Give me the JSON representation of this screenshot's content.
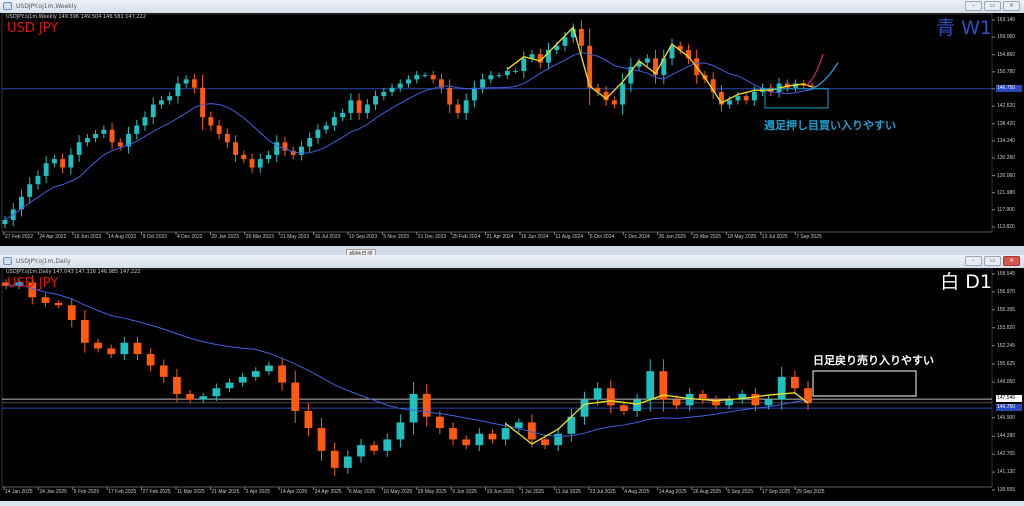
{
  "weekly": {
    "window_title": "USDJPY.oj1m,Weekly",
    "info_line": "USDJPY.oj1m,Weekly  149.396 149.504 146.581 147.222",
    "symbol_label": "USD JPY",
    "timeframe_label": "青 W1",
    "annotation": "週足押し目買い入りやすい",
    "current_price": "146.750"
  },
  "daily": {
    "window_title": "USDJPY.oj1m,Daily",
    "info_line": "USDJPY.oj1m,Daily  147.043 147.316 146.985 147.222",
    "symbol_label": "USD JPY",
    "timeframe_label": "白 D1",
    "annotation": "日足戻り売り入りやすい",
    "current_price": "146.750",
    "line_price": "147.546"
  },
  "tooltip": "横軸目盛",
  "colors": {
    "bull": "#20c0c0",
    "bear": "#ff5a10",
    "ma": "#4060e0",
    "zigzag": "#f0e020",
    "weekly_hline": "#2848b0",
    "weekly_box": "#1aa0d0",
    "daily_box": "#ffffff",
    "symbol": "#e01010",
    "w1_label": "#3050c0",
    "d1_label": "#ffffff",
    "projection_up": "#d0206a",
    "projection_ma": "#20a0e0"
  },
  "window_buttons": [
    "minimize",
    "restore",
    "close"
  ],
  "chart_data": [
    {
      "type": "candlestick",
      "title": "USDJPY.oj1m,Weekly",
      "ylim": [
        113.82,
        163.14
      ],
      "yticks": [
        "163.140",
        "159.060",
        "154.860",
        "150.780",
        "146.750",
        "142.620",
        "138.420",
        "134.340",
        "130.260",
        "126.060",
        "121.980",
        "117.900",
        "113.820"
      ],
      "xticks": [
        "27 Feb 2022",
        "24 Apr 2022",
        "19 Jun 2022",
        "14 Aug 2022",
        "9 Oct 2022",
        "4 Dec 2022",
        "29 Jan 2023",
        "26 Mar 2023",
        "21 May 2023",
        "16 Jul 2023",
        "10 Sep 2023",
        "5 Nov 2023",
        "31 Dec 2023",
        "25 Feb 2024",
        "21 Apr 2024",
        "16 Jun 2024",
        "11 Aug 2024",
        "6 Oct 2024",
        "1 Dec 2024",
        "26 Jan 2025",
        "23 Mar 2025",
        "18 May 2025",
        "13 Jul 2025",
        "7 Sep 2025"
      ],
      "closes": [
        115.5,
        118,
        121,
        124,
        126,
        129,
        130,
        128,
        131,
        134,
        135,
        136,
        137,
        134,
        133,
        136,
        138,
        140,
        143,
        144,
        145,
        148,
        149,
        147,
        140,
        138,
        136,
        134,
        131,
        130,
        128,
        130,
        131,
        134,
        132,
        131,
        133,
        135,
        137,
        138,
        140,
        141,
        144,
        141,
        143,
        145,
        146,
        147,
        148,
        149,
        150,
        150,
        149,
        147,
        143,
        141,
        144,
        147,
        149,
        150,
        150,
        151,
        151,
        154,
        155,
        153,
        156,
        157,
        159,
        161,
        157,
        147,
        146,
        144,
        143,
        148,
        152,
        153,
        154,
        150,
        154,
        157,
        156,
        154,
        150,
        149,
        146,
        143,
        144,
        145,
        144,
        146,
        147,
        146,
        148,
        147,
        148,
        147.5,
        147.2
      ],
      "horizontal_line": 146.75
    },
    {
      "type": "candlestick",
      "title": "USDJPY.oj1m,Daily",
      "ylim": [
        139.555,
        158.545
      ],
      "yticks": [
        "158.545",
        "156.970",
        "155.395",
        "153.820",
        "152.245",
        "150.625",
        "149.050",
        "145.900",
        "144.280",
        "142.705",
        "141.130",
        "139.555"
      ],
      "xticks": [
        "14 Jan 2025",
        "24 Jan 2025",
        "5 Feb 2025",
        "17 Feb 2025",
        "27 Feb 2025",
        "11 Mar 2025",
        "21 Mar 2025",
        "2 Apr 2025",
        "14 Apr 2025",
        "24 Apr 2025",
        "6 May 2025",
        "16 May 2025",
        "28 May 2025",
        "9 Jun 2025",
        "19 Jun 2025",
        "1 Jul 2025",
        "11 Jul 2025",
        "23 Jul 2025",
        "4 Aug 2025",
        "14 Aug 2025",
        "26 Aug 2025",
        "5 Sep 2025",
        "17 Sep 2025",
        "29 Sep 2025"
      ],
      "closes": [
        157.5,
        157.8,
        156.5,
        156,
        155.8,
        154.5,
        152.5,
        152,
        151.5,
        152.5,
        151.5,
        150.5,
        149.5,
        148,
        147.5,
        147.8,
        148.5,
        149,
        149.5,
        150,
        150.5,
        149,
        146.5,
        145,
        143,
        141.5,
        142.5,
        143.5,
        143,
        144,
        145.5,
        148,
        146,
        145,
        144,
        143.5,
        144.5,
        144,
        145,
        145.5,
        144,
        143.5,
        144.5,
        146,
        147.5,
        148.5,
        147,
        146.5,
        147.5,
        150,
        147.5,
        147,
        148,
        147.5,
        147,
        147.5,
        148,
        147,
        147.5,
        149.5,
        148.5,
        147.2
      ],
      "horizontal_lines": [
        147.546,
        146.75
      ]
    }
  ]
}
